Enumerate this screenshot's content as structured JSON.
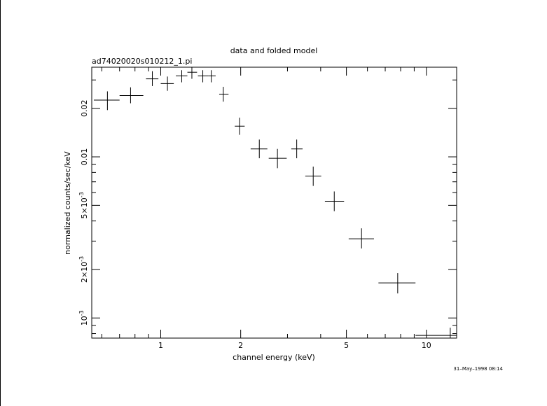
{
  "chart_data": {
    "type": "scatter",
    "title": "data and folded model",
    "subtitle": "ad74020020s010212_1.pi",
    "xlabel": "channel energy (keV)",
    "ylabel": "normalized counts/sec/keV",
    "x_scale": "log",
    "y_scale": "log",
    "xlim": [
      0.55,
      13
    ],
    "ylim": [
      0.00075,
      0.036
    ],
    "x_ticks": [
      {
        "value": 1,
        "label": "1"
      },
      {
        "value": 2,
        "label": "2"
      },
      {
        "value": 5,
        "label": "5"
      },
      {
        "value": 10,
        "label": "10"
      }
    ],
    "y_ticks": [
      {
        "value": 0.001,
        "label": "10",
        "sup": "-3"
      },
      {
        "value": 0.002,
        "label": "2×10",
        "sup": "-3"
      },
      {
        "value": 0.005,
        "label": "5×10",
        "sup": "-3"
      },
      {
        "value": 0.01,
        "label": "0.01",
        "sup": ""
      },
      {
        "value": 0.02,
        "label": "0.02",
        "sup": ""
      }
    ],
    "grid": false,
    "series": [
      {
        "points": [
          {
            "x": 0.63,
            "xlo": 0.56,
            "xhi": 0.7,
            "y": 0.0225,
            "ylo": 0.0195,
            "yhi": 0.0255
          },
          {
            "x": 0.77,
            "xlo": 0.7,
            "xhi": 0.86,
            "y": 0.024,
            "ylo": 0.0215,
            "yhi": 0.027
          },
          {
            "x": 0.93,
            "xlo": 0.88,
            "xhi": 0.98,
            "y": 0.0305,
            "ylo": 0.0275,
            "yhi": 0.034
          },
          {
            "x": 1.06,
            "xlo": 1.0,
            "xhi": 1.12,
            "y": 0.0285,
            "ylo": 0.0257,
            "yhi": 0.0315
          },
          {
            "x": 1.2,
            "xlo": 1.14,
            "xhi": 1.26,
            "y": 0.0318,
            "ylo": 0.029,
            "yhi": 0.0345
          },
          {
            "x": 1.31,
            "xlo": 1.26,
            "xhi": 1.37,
            "y": 0.0335,
            "ylo": 0.0305,
            "yhi": 0.0362
          },
          {
            "x": 1.44,
            "xlo": 1.38,
            "xhi": 1.51,
            "y": 0.0318,
            "ylo": 0.029,
            "yhi": 0.0345
          },
          {
            "x": 1.55,
            "xlo": 1.51,
            "xhi": 1.61,
            "y": 0.0318,
            "ylo": 0.029,
            "yhi": 0.0345
          },
          {
            "x": 1.72,
            "xlo": 1.66,
            "xhi": 1.8,
            "y": 0.0245,
            "ylo": 0.022,
            "yhi": 0.0272
          },
          {
            "x": 1.98,
            "xlo": 1.9,
            "xhi": 2.07,
            "y": 0.0155,
            "ylo": 0.0137,
            "yhi": 0.0175
          },
          {
            "x": 2.35,
            "xlo": 2.18,
            "xhi": 2.52,
            "y": 0.0112,
            "ylo": 0.0098,
            "yhi": 0.0128
          },
          {
            "x": 2.75,
            "xlo": 2.55,
            "xhi": 2.98,
            "y": 0.0098,
            "ylo": 0.0085,
            "yhi": 0.0112
          },
          {
            "x": 3.25,
            "xlo": 3.1,
            "xhi": 3.42,
            "y": 0.0112,
            "ylo": 0.0098,
            "yhi": 0.0128
          },
          {
            "x": 3.75,
            "xlo": 3.5,
            "xhi": 4.02,
            "y": 0.0076,
            "ylo": 0.0066,
            "yhi": 0.0087
          },
          {
            "x": 4.5,
            "xlo": 4.15,
            "xhi": 4.9,
            "y": 0.0053,
            "ylo": 0.0046,
            "yhi": 0.0061
          },
          {
            "x": 5.7,
            "xlo": 5.1,
            "xhi": 6.35,
            "y": 0.0031,
            "ylo": 0.0027,
            "yhi": 0.0036
          },
          {
            "x": 7.8,
            "xlo": 6.6,
            "xhi": 9.1,
            "y": 0.00165,
            "ylo": 0.00142,
            "yhi": 0.0019
          },
          {
            "x": 12.3,
            "xlo": 9.1,
            "xhi": 13.0,
            "y": 0.00078,
            "ylo": 0.0007,
            "yhi": 0.00087
          }
        ]
      }
    ]
  },
  "timestamp": "31–May–1998 08:14"
}
